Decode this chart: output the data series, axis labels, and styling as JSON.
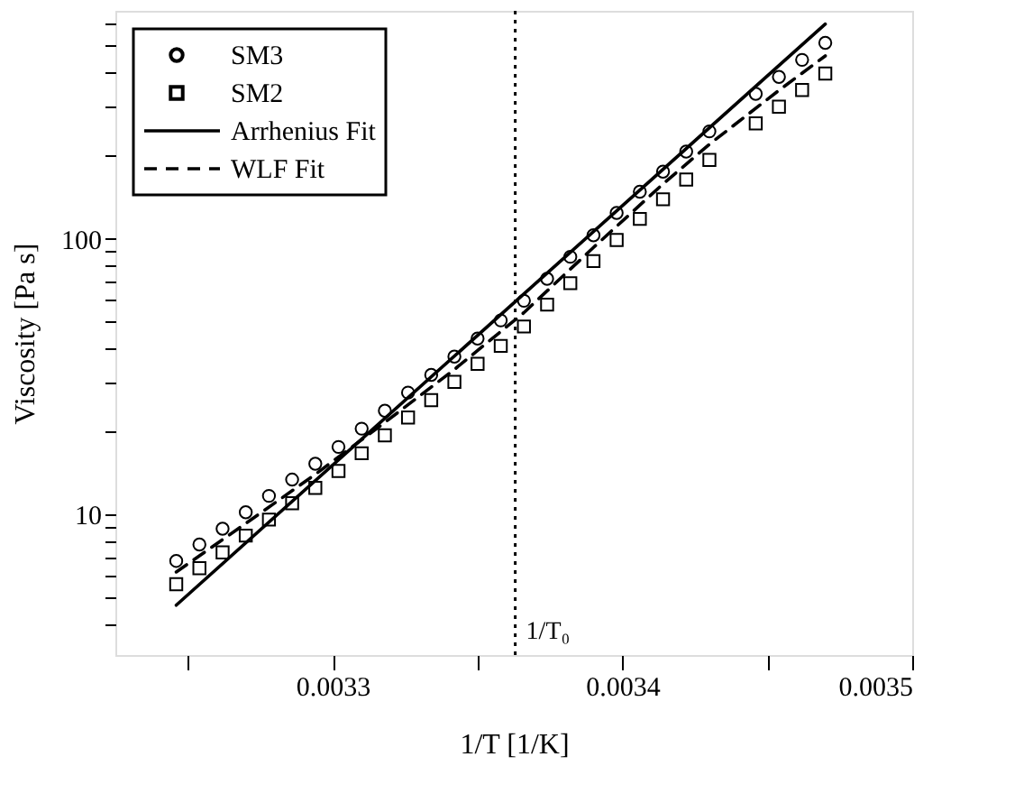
{
  "chart_data": {
    "type": "scatter",
    "xlabel": "1/T [1/K]",
    "ylabel": "Viscosity [Pa s]",
    "log": "y",
    "grid": false,
    "legend": "top left",
    "xlim": [
      0.003225,
      0.0035
    ],
    "xticks": [
      {
        "value": 0.00325,
        "label": null
      },
      0.0033,
      {
        "value": 0.00335,
        "label": null
      },
      0.0034,
      {
        "value": 0.00345,
        "label": null
      },
      0.0035
    ],
    "ylim": [
      3.1,
      670
    ],
    "yticks": [
      {
        "value": 4,
        "label": null
      },
      {
        "value": 5,
        "label": null
      },
      {
        "value": 6,
        "label": null
      },
      {
        "value": 7,
        "label": null
      },
      {
        "value": 8,
        "label": null
      },
      {
        "value": 9,
        "label": null
      },
      10,
      {
        "value": 20,
        "label": null
      },
      {
        "value": 30,
        "label": null
      },
      {
        "value": 40,
        "label": null
      },
      {
        "value": 50,
        "label": null
      },
      {
        "value": 60,
        "label": null
      },
      {
        "value": 70,
        "label": null
      },
      {
        "value": 80,
        "label": null
      },
      {
        "value": 90,
        "label": null
      },
      100,
      {
        "value": 200,
        "label": null
      },
      {
        "value": 300,
        "label": null
      },
      {
        "value": 400,
        "label": null
      },
      {
        "value": 500,
        "label": null
      },
      {
        "value": 600,
        "label": null
      }
    ],
    "ref_lines": [
      {
        "axis": "x",
        "value": 0.003363,
        "label": "1/T₀",
        "line_style": "dotted",
        "color": "#000000"
      }
    ],
    "series": [
      {
        "name": "SM3",
        "marker": "circle",
        "color": "#000000",
        "x": [
          0.003246,
          0.003254,
          0.003262,
          0.00327,
          0.003278,
          0.003286,
          0.003294,
          0.003302,
          0.00331,
          0.003318,
          0.003326,
          0.003334,
          0.003342,
          0.00335,
          0.003358,
          0.003366,
          0.003374,
          0.003382,
          0.00339,
          0.003398,
          0.003406,
          0.003414,
          0.003422,
          0.00343,
          0.003446,
          0.003454,
          0.003462,
          0.00347
        ],
        "values": [
          6.8,
          7.8,
          8.9,
          10.2,
          11.7,
          13.4,
          15.3,
          17.6,
          20.5,
          23.8,
          27.7,
          32.1,
          37.4,
          43.5,
          50.6,
          59.6,
          71.6,
          86,
          103,
          124,
          148,
          175,
          207,
          245,
          335,
          386,
          445,
          513
        ]
      },
      {
        "name": "SM2",
        "marker": "square",
        "color": "#000000",
        "x": [
          0.003246,
          0.003254,
          0.003262,
          0.00327,
          0.003278,
          0.003286,
          0.003294,
          0.003302,
          0.00331,
          0.003318,
          0.003326,
          0.003334,
          0.003342,
          0.00335,
          0.003358,
          0.003366,
          0.003374,
          0.003382,
          0.00339,
          0.003398,
          0.003406,
          0.003414,
          0.003422,
          0.00343,
          0.003446,
          0.003454,
          0.003462,
          0.00347
        ],
        "values": [
          5.6,
          6.4,
          7.3,
          8.4,
          9.6,
          11,
          12.5,
          14.4,
          16.7,
          19.4,
          22.5,
          26,
          30.3,
          35.2,
          40.9,
          48.1,
          57.7,
          69,
          83,
          99,
          118,
          139,
          164,
          193,
          262,
          301,
          346,
          397
        ]
      },
      {
        "name": "Arrhenius Fit",
        "type": "line",
        "marker": "none",
        "line_style": "solid",
        "color": "#000000",
        "x": [
          0.003246,
          0.00347
        ],
        "values": [
          4.7,
          600
        ]
      },
      {
        "name": "WLF Fit",
        "type": "line",
        "marker": "none",
        "line_style": "dashed",
        "color": "#000000",
        "x": [
          0.003246,
          0.00327,
          0.003294,
          0.003318,
          0.003342,
          0.003366,
          0.00339,
          0.003414,
          0.00343,
          0.003454,
          0.00347
        ],
        "values": [
          6.2,
          9.3,
          14,
          21.6,
          33.6,
          54,
          93,
          158,
          220,
          345,
          460
        ]
      }
    ]
  }
}
